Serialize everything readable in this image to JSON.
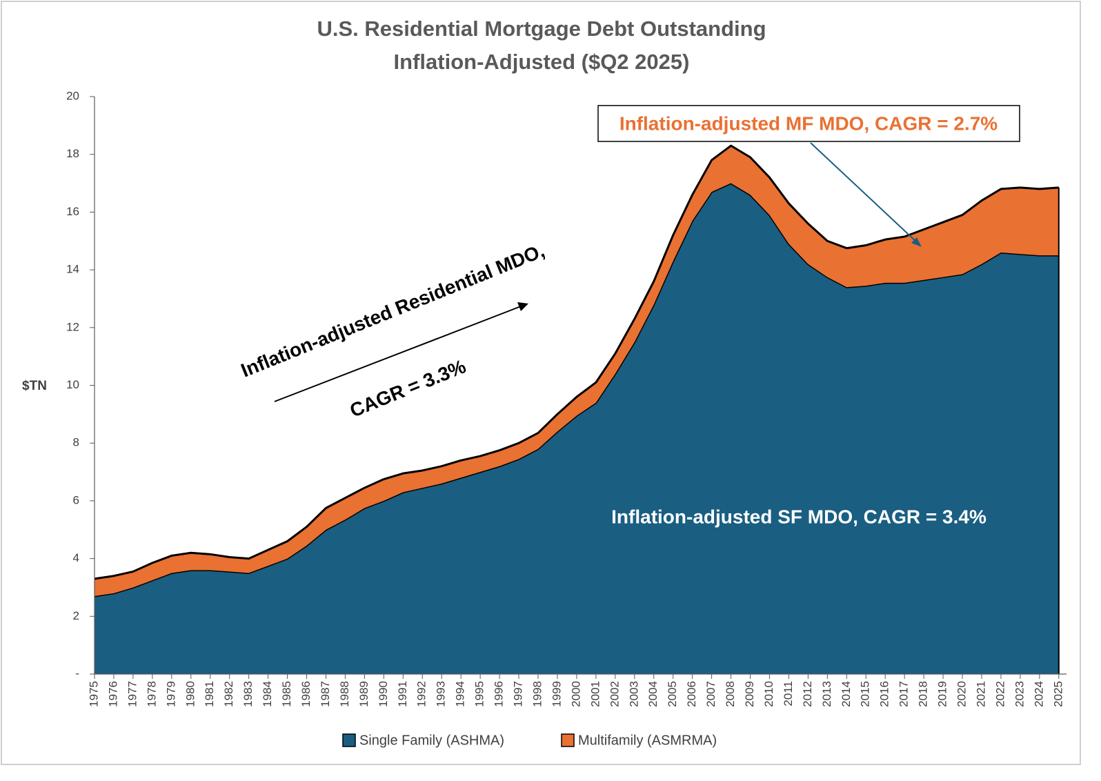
{
  "chart_data": {
    "type": "stacked-area",
    "title": "U.S. Residential Mortgage Debt Outstanding",
    "subtitle": "Inflation-Adjusted ($Q2 2025)",
    "y_label": "$TN",
    "x": [
      1975,
      1976,
      1977,
      1978,
      1979,
      1980,
      1981,
      1982,
      1983,
      1984,
      1985,
      1986,
      1987,
      1988,
      1989,
      1990,
      1991,
      1992,
      1993,
      1994,
      1995,
      1996,
      1997,
      1998,
      1999,
      2000,
      2001,
      2002,
      2003,
      2004,
      2005,
      2006,
      2007,
      2008,
      2009,
      2010,
      2011,
      2012,
      2013,
      2014,
      2015,
      2016,
      2017,
      2018,
      2019,
      2020,
      2021,
      2022,
      2023,
      2024,
      2025
    ],
    "xlim": [
      1975,
      2025.4
    ],
    "ylim": [
      0,
      20
    ],
    "yticks": [
      {
        "value": 0,
        "label": "-"
      },
      2,
      4,
      6,
      8,
      10,
      12,
      14,
      16,
      18,
      20
    ],
    "series": [
      {
        "name": "Single Family (ASHMA)",
        "color": "#1a5e82",
        "values": [
          2.7,
          2.8,
          3.0,
          3.25,
          3.5,
          3.6,
          3.6,
          3.55,
          3.5,
          3.75,
          4.0,
          4.45,
          5.0,
          5.35,
          5.75,
          6.0,
          6.3,
          6.45,
          6.6,
          6.8,
          7.0,
          7.2,
          7.45,
          7.8,
          8.4,
          8.95,
          9.4,
          10.4,
          11.5,
          12.8,
          14.3,
          15.7,
          16.7,
          17.0,
          16.6,
          15.9,
          14.9,
          14.2,
          13.75,
          13.4,
          13.45,
          13.55,
          13.55,
          13.65,
          13.75,
          13.85,
          14.2,
          14.6,
          14.55,
          14.5,
          14.5
        ]
      },
      {
        "name": "Multifamily (ASMRMA)",
        "color": "#e97132",
        "values": [
          0.6,
          0.6,
          0.55,
          0.6,
          0.6,
          0.6,
          0.55,
          0.5,
          0.5,
          0.55,
          0.6,
          0.65,
          0.75,
          0.75,
          0.7,
          0.75,
          0.65,
          0.6,
          0.6,
          0.6,
          0.55,
          0.55,
          0.55,
          0.55,
          0.6,
          0.65,
          0.7,
          0.7,
          0.8,
          0.8,
          0.9,
          0.9,
          1.1,
          1.3,
          1.3,
          1.3,
          1.4,
          1.4,
          1.25,
          1.35,
          1.4,
          1.5,
          1.6,
          1.75,
          1.9,
          2.05,
          2.2,
          2.2,
          2.3,
          2.3,
          2.35
        ]
      }
    ],
    "annotations": [
      "Inflation-adjusted MF MDO, CAGR = 2.7%",
      "Inflation-adjusted SF MDO, CAGR = 3.4%",
      "Inflation-adjusted Residential MDO,",
      "CAGR = 3.3%"
    ],
    "legend": "bottom"
  }
}
